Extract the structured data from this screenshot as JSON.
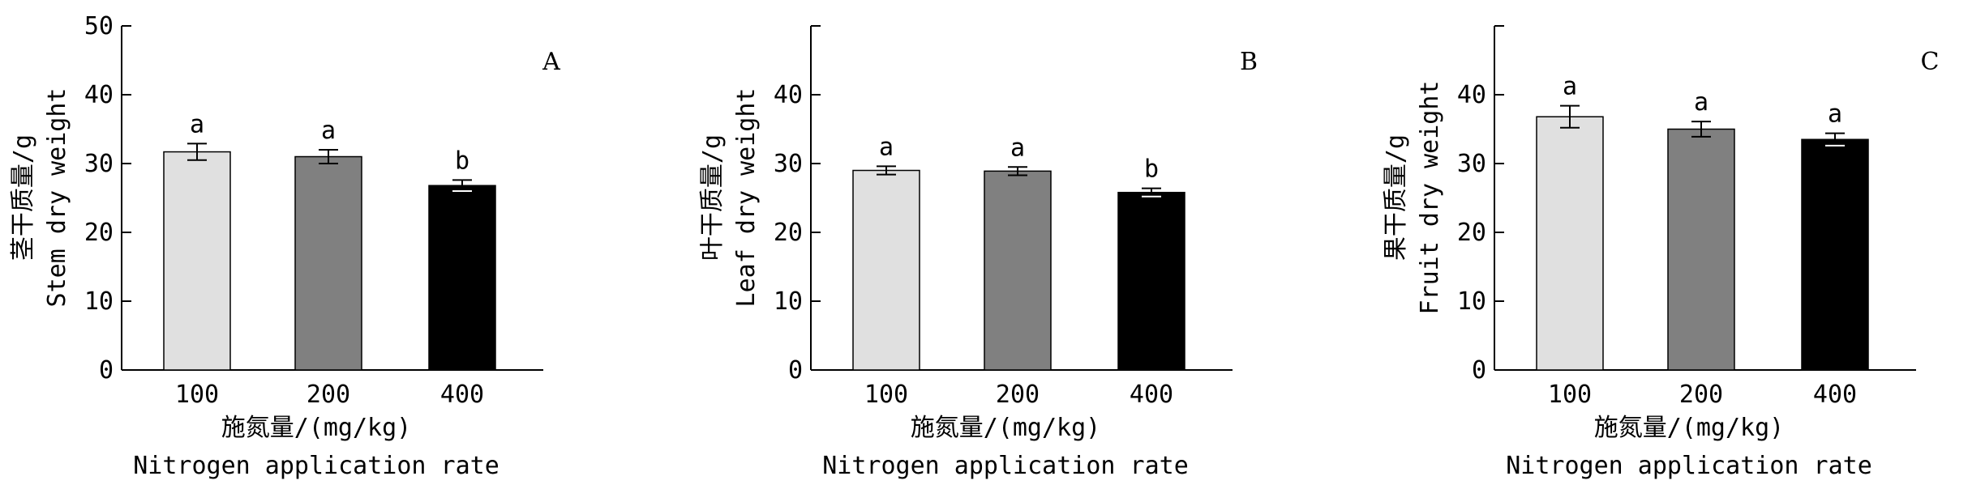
{
  "chart_data": [
    {
      "type": "bar",
      "panel_label": "A",
      "categories": [
        "100",
        "200",
        "400"
      ],
      "values": [
        31.7,
        31.0,
        26.8
      ],
      "errors": [
        1.2,
        1.0,
        0.8
      ],
      "significance": [
        "a",
        "a",
        "b"
      ],
      "bar_colors": [
        "#e0e0e0",
        "#808080",
        "#000000"
      ],
      "ylabel_cn": "茎干质量/g",
      "ylabel_en": "Stem dry weight",
      "xlabel_cn": "施氮量/(mg/kg)",
      "xlabel_en": "Nitrogen application rate",
      "ylim": [
        0,
        50
      ],
      "yticks": [
        0,
        10,
        20,
        30,
        40,
        50
      ],
      "grid": false
    },
    {
      "type": "bar",
      "panel_label": "B",
      "categories": [
        "100",
        "200",
        "400"
      ],
      "values": [
        29.0,
        28.9,
        25.8
      ],
      "errors": [
        0.6,
        0.6,
        0.6
      ],
      "significance": [
        "a",
        "a",
        "b"
      ],
      "bar_colors": [
        "#e0e0e0",
        "#808080",
        "#000000"
      ],
      "ylabel_cn": "叶干质量/g",
      "ylabel_en": "Leaf dry weight",
      "xlabel_cn": "施氮量/(mg/kg)",
      "xlabel_en": "Nitrogen application rate",
      "ylim": [
        0,
        50
      ],
      "yticks": [
        0,
        10,
        20,
        30,
        40
      ],
      "grid": false
    },
    {
      "type": "bar",
      "panel_label": "C",
      "categories": [
        "100",
        "200",
        "400"
      ],
      "values": [
        36.8,
        35.0,
        33.5
      ],
      "errors": [
        1.6,
        1.1,
        0.9
      ],
      "significance": [
        "a",
        "a",
        "a"
      ],
      "bar_colors": [
        "#e0e0e0",
        "#808080",
        "#000000"
      ],
      "ylabel_cn": "果干质量/g",
      "ylabel_en": "Fruit dry weight",
      "xlabel_cn": "施氮量/(mg/kg)",
      "xlabel_en": "Nitrogen application rate",
      "ylim": [
        0,
        50
      ],
      "yticks": [
        0,
        10,
        20,
        30,
        40
      ],
      "grid": false
    }
  ]
}
